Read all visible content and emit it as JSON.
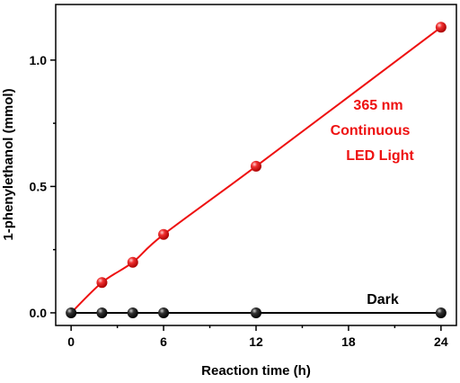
{
  "chart_data": {
    "type": "line",
    "xlabel": "Reaction time (h)",
    "ylabel": "1-phenylethanol (mmol)",
    "xlim": [
      -1,
      25
    ],
    "ylim": [
      -0.05,
      1.22
    ],
    "x_ticks": [
      "0",
      "6",
      "12",
      "18",
      "24"
    ],
    "y_ticks": [
      "0.0",
      "0.5",
      "1.0"
    ],
    "grid": false,
    "series": [
      {
        "name": "365 nm Continuous LED Light",
        "color": "#ee1111",
        "x": [
          0,
          2,
          4,
          6,
          12,
          24
        ],
        "y": [
          0.0,
          0.12,
          0.2,
          0.31,
          0.58,
          1.13
        ]
      },
      {
        "name": "Dark",
        "color": "#000000",
        "x": [
          0,
          2,
          4,
          6,
          12,
          24
        ],
        "y": [
          0.0,
          0.0,
          0.0,
          0.0,
          0.0,
          0.0
        ]
      }
    ],
    "annotations": {
      "light_line1": "365 nm",
      "light_line2": "Continuous",
      "light_line3": "LED Light",
      "dark": "Dark"
    }
  }
}
